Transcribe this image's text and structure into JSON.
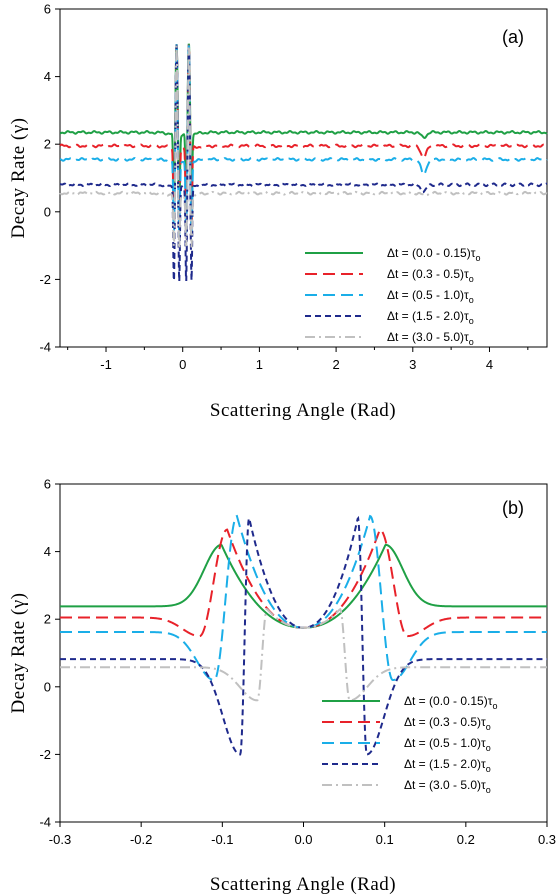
{
  "chart_data": [
    {
      "type": "line",
      "panel_label": "(a)",
      "xlabel": "Scattering Angle (Rad)",
      "ylabel": "Decay Rate (γ)",
      "xlim": [
        -1.6,
        4.75
      ],
      "ylim": [
        -4,
        6
      ],
      "x_ticks": [
        -1,
        0,
        1,
        2,
        3,
        4
      ],
      "y_ticks": [
        -4,
        -2,
        0,
        2,
        4,
        6
      ],
      "x_tick_labels": [
        "-1",
        "0",
        "1",
        "2",
        "3",
        "4"
      ],
      "y_tick_labels": [
        "-4",
        "-2",
        "0",
        "2",
        "4",
        "6"
      ],
      "legend_position": "bottom-right",
      "series": [
        {
          "name": "Δt = (0.0 - 0.15)τ",
          "name_sub": "o",
          "color": "#1fa045",
          "dash": "solid",
          "baseline": 2.35,
          "dip_at_pi": 0.15
        },
        {
          "name": "Δt = (0.3 - 0.5)τ",
          "name_sub": "o",
          "color": "#e8222a",
          "dash": "long",
          "baseline": 1.95,
          "dip_at_pi": 0.35
        },
        {
          "name": "Δt = (0.5 - 1.0)τ",
          "name_sub": "o",
          "color": "#1aaee8",
          "dash": "long",
          "baseline": 1.55,
          "dip_at_pi": 0.45
        },
        {
          "name": "Δt = (1.5 - 2.0)τ",
          "name_sub": "o",
          "color": "#1f2a8c",
          "dash": "short",
          "baseline": 0.8,
          "dip_at_pi": 0.2
        },
        {
          "name": "Δt = (3.0 - 5.0)τ",
          "name_sub": "o",
          "color": "#c0c0c0",
          "dash": "dashdot",
          "baseline": 0.55,
          "dip_at_pi": 0.05
        }
      ],
      "spike_peaks": [
        5.05,
        5.05
      ],
      "spike_troughs": [
        -2.0,
        -2.0
      ]
    },
    {
      "type": "line",
      "panel_label": "(b)",
      "xlabel": "Scattering Angle (Rad)",
      "ylabel": "Decay Rate (γ)",
      "xlim": [
        -0.3,
        0.3
      ],
      "ylim": [
        -4,
        6
      ],
      "x_ticks": [
        -0.3,
        -0.2,
        -0.1,
        0.0,
        0.1,
        0.2,
        0.3
      ],
      "y_ticks": [
        -4,
        -2,
        0,
        2,
        4,
        6
      ],
      "x_tick_labels": [
        "-0.3",
        "-0.2",
        "-0.1",
        "0.0",
        "0.1",
        "0.2",
        "0.3"
      ],
      "y_tick_labels": [
        "-4",
        "-2",
        "0",
        "2",
        "4",
        "6"
      ],
      "legend_position": "bottom-right",
      "center_value": 1.75,
      "series": [
        {
          "name": "Δt = (0.0 - 0.15)τ",
          "name_sub": "o",
          "color": "#1fa045",
          "dash": "solid",
          "baseline": 2.38,
          "peak_x": 0.101,
          "peak_y": 4.2,
          "min_x": null,
          "min_y": null
        },
        {
          "name": "Δt = (0.3 - 0.5)τ",
          "name_sub": "o",
          "color": "#e8222a",
          "dash": "long",
          "baseline": 2.05,
          "peak_x": 0.094,
          "peak_y": 4.65,
          "min_x": 0.128,
          "min_y": 1.5
        },
        {
          "name": "Δt = (0.5 - 1.0)τ",
          "name_sub": "o",
          "color": "#1aaee8",
          "dash": "long",
          "baseline": 1.62,
          "peak_x": 0.082,
          "peak_y": 5.05,
          "min_x": 0.11,
          "min_y": 0.2
        },
        {
          "name": "Δt = (1.5 - 2.0)τ",
          "name_sub": "o",
          "color": "#1f2a8c",
          "dash": "short",
          "baseline": 0.82,
          "peak_x": 0.067,
          "peak_y": 5.0,
          "min_x": 0.078,
          "min_y": -2.0
        },
        {
          "name": "Δt = (3.0 - 5.0)τ",
          "name_sub": "o",
          "color": "#c0c0c0",
          "dash": "dashdot",
          "baseline": 0.58,
          "peak_x": 0.045,
          "peak_y": 2.3,
          "min_x": 0.057,
          "min_y": -0.4
        }
      ]
    }
  ]
}
